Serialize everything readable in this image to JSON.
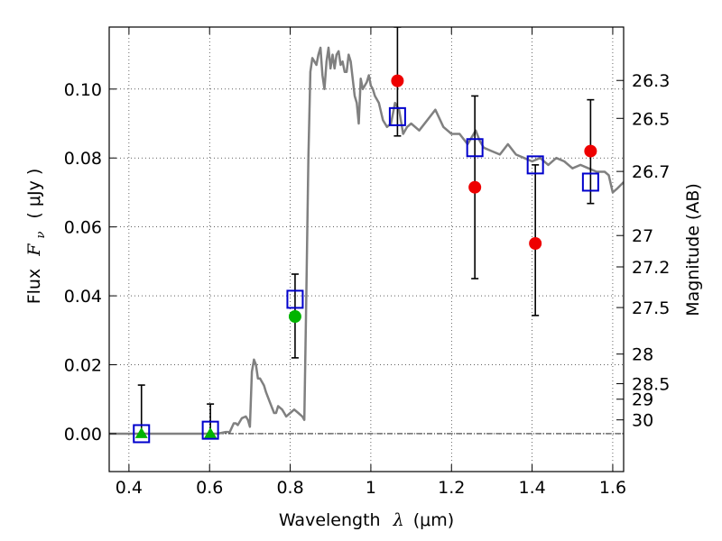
{
  "chart_data": {
    "type": "scatter",
    "title": "",
    "xlabel": "Wavelength  λ (μm)",
    "ylabel": "Flux  F_ν  ( μJy )",
    "ylabel_parts": {
      "prefix": "Flux",
      "symbol": "F",
      "subscript": "ν",
      "unit": "( μJy )"
    },
    "xlabel_parts": {
      "prefix": "Wavelength",
      "symbol": "λ",
      "unit": "(μm)"
    },
    "ylabel_right": "Magnitude (AB)",
    "xlim": [
      0.351,
      1.627
    ],
    "ylim": [
      -0.011,
      0.118
    ],
    "grid": true,
    "xticks": [
      0.4,
      0.6,
      0.8,
      1.0,
      1.2,
      1.4,
      1.6
    ],
    "xtick_labels": [
      "0.4",
      "0.6",
      "0.8",
      "1",
      "1.2",
      "1.4",
      "1.6"
    ],
    "yticks": [
      0.0,
      0.02,
      0.04,
      0.06,
      0.08,
      0.1
    ],
    "ytick_labels": [
      "0.00",
      "0.02",
      "0.04",
      "0.06",
      "0.08",
      "0.10"
    ],
    "right_ticks": [
      {
        "label": "26.3",
        "flux": 0.1025
      },
      {
        "label": "26.5",
        "flux": 0.0915
      },
      {
        "label": "26.7",
        "flux": 0.0761
      },
      {
        "label": "27",
        "flux": 0.0575
      },
      {
        "label": "27.2",
        "flux": 0.0484
      },
      {
        "label": "27.5",
        "flux": 0.0366
      },
      {
        "label": "28",
        "flux": 0.0231
      },
      {
        "label": "28.5",
        "flux": 0.0145
      },
      {
        "label": "29",
        "flux": 0.01
      },
      {
        "label": "30",
        "flux": 0.004
      }
    ],
    "colors": {
      "model": "#808080",
      "green": "#00b400",
      "red": "#ee0000",
      "blue": "#0000cc",
      "errorbar": "#000000",
      "zeroline": "#000000"
    },
    "model_spectrum": {
      "name": "model SED",
      "x": [
        0.351,
        0.55,
        0.62,
        0.64,
        0.65,
        0.66,
        0.665,
        0.67,
        0.68,
        0.69,
        0.695,
        0.7,
        0.705,
        0.71,
        0.715,
        0.72,
        0.725,
        0.73,
        0.735,
        0.74,
        0.75,
        0.76,
        0.765,
        0.77,
        0.78,
        0.785,
        0.79,
        0.8,
        0.81,
        0.82,
        0.83,
        0.835,
        0.84,
        0.845,
        0.85,
        0.855,
        0.86,
        0.865,
        0.87,
        0.875,
        0.88,
        0.885,
        0.89,
        0.895,
        0.9,
        0.905,
        0.91,
        0.915,
        0.92,
        0.925,
        0.93,
        0.935,
        0.94,
        0.945,
        0.95,
        0.96,
        0.965,
        0.97,
        0.975,
        0.98,
        0.99,
        0.995,
        1.0,
        1.005,
        1.01,
        1.02,
        1.03,
        1.04,
        1.05,
        1.06,
        1.07,
        1.08,
        1.09,
        1.1,
        1.12,
        1.14,
        1.16,
        1.18,
        1.2,
        1.22,
        1.24,
        1.26,
        1.27,
        1.28,
        1.3,
        1.32,
        1.34,
        1.36,
        1.38,
        1.4,
        1.42,
        1.44,
        1.46,
        1.48,
        1.5,
        1.52,
        1.54,
        1.56,
        1.58,
        1.59,
        1.6,
        1.61,
        1.627
      ],
      "y": [
        0.0,
        0.0,
        0.0,
        0.0005,
        0.0005,
        0.003,
        0.003,
        0.0025,
        0.0045,
        0.005,
        0.004,
        0.002,
        0.018,
        0.0215,
        0.02,
        0.016,
        0.016,
        0.015,
        0.014,
        0.012,
        0.009,
        0.006,
        0.006,
        0.008,
        0.007,
        0.006,
        0.005,
        0.006,
        0.007,
        0.006,
        0.005,
        0.004,
        0.04,
        0.08,
        0.105,
        0.109,
        0.108,
        0.107,
        0.11,
        0.112,
        0.104,
        0.1,
        0.108,
        0.112,
        0.106,
        0.11,
        0.106,
        0.11,
        0.111,
        0.107,
        0.108,
        0.105,
        0.105,
        0.11,
        0.108,
        0.098,
        0.096,
        0.09,
        0.103,
        0.1,
        0.102,
        0.104,
        0.101,
        0.1,
        0.098,
        0.096,
        0.091,
        0.089,
        0.09,
        0.096,
        0.094,
        0.087,
        0.089,
        0.09,
        0.088,
        0.091,
        0.094,
        0.089,
        0.087,
        0.087,
        0.084,
        0.088,
        0.085,
        0.083,
        0.082,
        0.081,
        0.084,
        0.081,
        0.08,
        0.079,
        0.08,
        0.078,
        0.08,
        0.079,
        0.077,
        0.078,
        0.077,
        0.076,
        0.076,
        0.075,
        0.07,
        0.071,
        0.073
      ]
    },
    "series": [
      {
        "name": "green-triangles",
        "marker": "triangle",
        "color": "#00b400",
        "points": [
          {
            "x": 0.431,
            "y": 0.0
          },
          {
            "x": 0.602,
            "y": 0.0
          }
        ]
      },
      {
        "name": "green-circles",
        "marker": "circle",
        "color": "#00b400",
        "points": [
          {
            "x": 0.812,
            "y": 0.034
          }
        ]
      },
      {
        "name": "red-circles",
        "marker": "circle",
        "color": "#ee0000",
        "points": [
          {
            "x": 1.066,
            "y": 0.1024
          },
          {
            "x": 1.258,
            "y": 0.0715
          },
          {
            "x": 1.408,
            "y": 0.0552
          },
          {
            "x": 1.545,
            "y": 0.082
          }
        ]
      },
      {
        "name": "blue-squares",
        "marker": "square-open",
        "color": "#0000cc",
        "points": [
          {
            "x": 0.431,
            "y": 0.0
          },
          {
            "x": 0.602,
            "y": 0.001
          },
          {
            "x": 0.812,
            "y": 0.039
          },
          {
            "x": 1.066,
            "y": 0.092
          },
          {
            "x": 1.258,
            "y": 0.083
          },
          {
            "x": 1.408,
            "y": 0.078
          },
          {
            "x": 1.545,
            "y": 0.073
          }
        ]
      }
    ],
    "error_bars": [
      {
        "x": 0.431,
        "low": 0.0,
        "high": 0.0141
      },
      {
        "x": 0.602,
        "low": 0.0,
        "high": 0.0086
      },
      {
        "x": 0.812,
        "low": 0.022,
        "high": 0.0463
      },
      {
        "x": 1.066,
        "low": 0.0864,
        "high": 0.118
      },
      {
        "x": 1.258,
        "low": 0.045,
        "high": 0.098
      },
      {
        "x": 1.408,
        "low": 0.0343,
        "high": 0.078
      },
      {
        "x": 1.545,
        "low": 0.0668,
        "high": 0.0969
      }
    ],
    "zero_line": 0.0
  }
}
